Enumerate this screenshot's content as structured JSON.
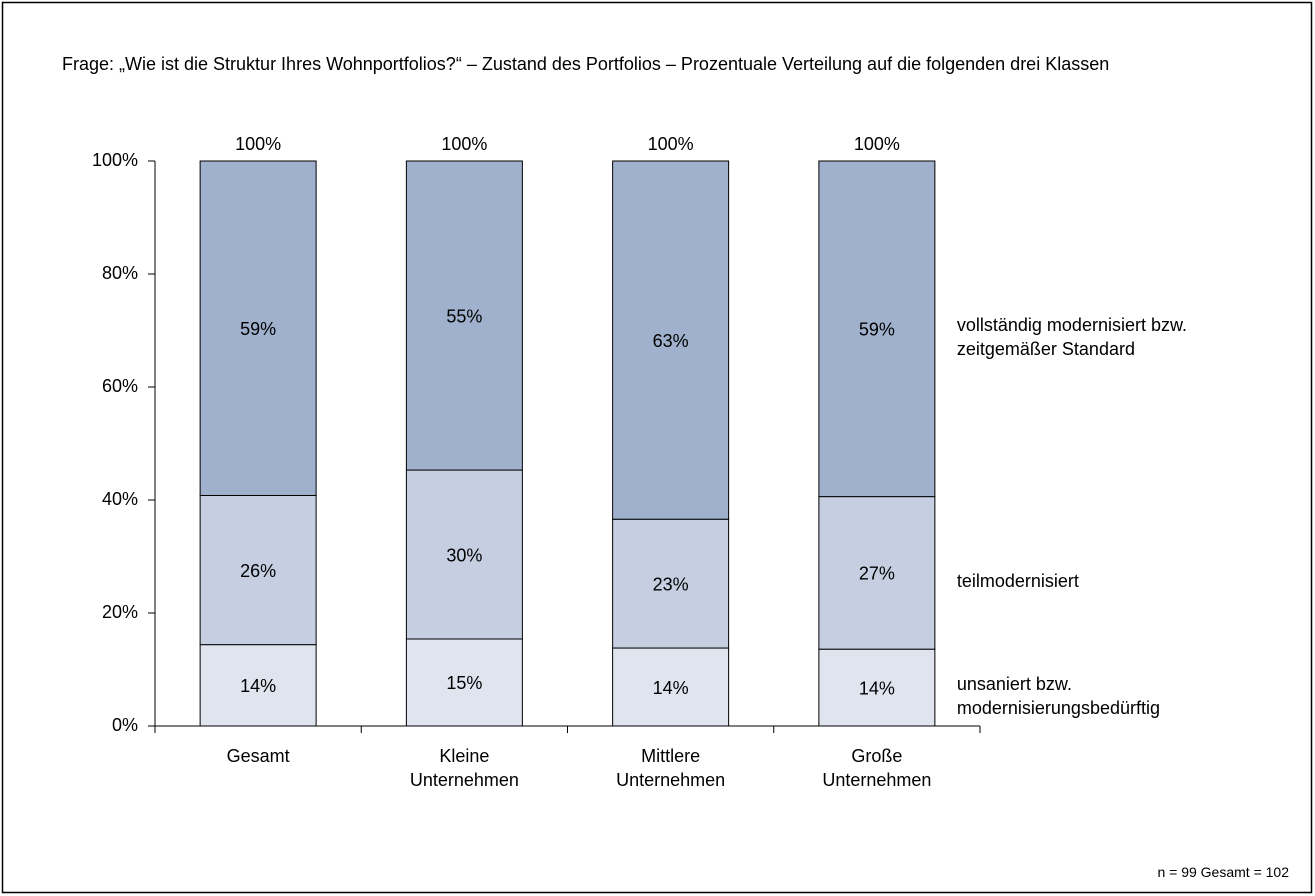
{
  "chart_data": {
    "type": "stacked_bar",
    "title": "Frage: „Wie ist die Struktur Ihres Wohnportfolios?“ – Zustand des Portfolios – Prozentuale Verteilung auf die folgenden drei Klassen",
    "footnote": "n = 99 Gesamt = 102",
    "categories": [
      "Gesamt",
      "Kleine Unternehmen",
      "Mittlere Unternehmen",
      "Große Unternehmen"
    ],
    "series": [
      {
        "name": "unsaniert bzw. modernisierungsbedürftig",
        "color": "#dfe4ef",
        "values": [
          14.4,
          15.4,
          13.8,
          13.6
        ],
        "value_labels": [
          "14%",
          "15%",
          "14%",
          "14%"
        ]
      },
      {
        "name": "teilmodernisiert",
        "color": "#c5cfe1",
        "values": [
          26.4,
          29.9,
          22.8,
          27.0
        ],
        "value_labels": [
          "26%",
          "30%",
          "23%",
          "27%"
        ]
      },
      {
        "name": "vollständig modernisiert bzw. zeitgemäßer Standard",
        "color": "#a0b1cd",
        "values": [
          59.2,
          54.7,
          63.4,
          59.4
        ],
        "value_labels": [
          "59%",
          "55%",
          "63%",
          "59%"
        ]
      }
    ],
    "totals": [
      100,
      100,
      100,
      100
    ],
    "total_labels": [
      "100%",
      "100%",
      "100%",
      "100%"
    ],
    "ylim": [
      0,
      100
    ],
    "yticks": [
      {
        "value": 0,
        "label": "0%"
      },
      {
        "value": 20,
        "label": "20%"
      },
      {
        "value": 40,
        "label": "40%"
      },
      {
        "value": 60,
        "label": "60%"
      },
      {
        "value": 80,
        "label": "80%"
      },
      {
        "value": 100,
        "label": "100%"
      }
    ],
    "legend": "right"
  }
}
